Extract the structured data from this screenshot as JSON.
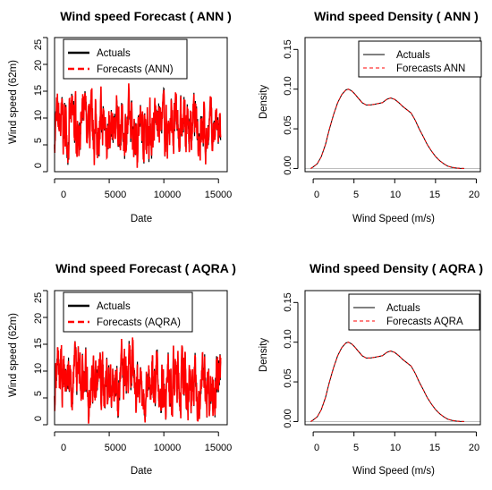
{
  "colors": {
    "actuals": "#000000",
    "forecast": "#ff0000",
    "axis": "#000000",
    "zero_line": "#bebebe"
  },
  "chart_data": [
    {
      "type": "line",
      "title": "Wind speed Forecast ( ANN )",
      "xlabel": "Date",
      "ylabel": "Wind speed (62m)",
      "xlim": [
        0,
        15800
      ],
      "ylim": [
        0,
        25
      ],
      "xticks": [
        "0",
        "5000",
        "10000",
        "15000"
      ],
      "yticks": [
        "0",
        "5",
        "10",
        "15",
        "20",
        "25"
      ],
      "legend_position": "top-right",
      "legend_box": true,
      "series": [
        {
          "name": "Actuals",
          "color": "#000000",
          "style": "solid"
        },
        {
          "name": "Forecasts (ANN)",
          "color": "#ff0000",
          "style": "dashed"
        }
      ],
      "band": [
        {
          "x": 0,
          "low": 1.2,
          "high": 14.8
        },
        {
          "x": 1500,
          "low": 0.4,
          "high": 17.0
        },
        {
          "x": 3000,
          "low": 0.9,
          "high": 15.2
        },
        {
          "x": 4500,
          "low": 0.6,
          "high": 16.2
        },
        {
          "x": 6000,
          "low": 0.5,
          "high": 16.6
        },
        {
          "x": 7500,
          "low": -0.4,
          "high": 16.0
        },
        {
          "x": 9000,
          "low": 0.8,
          "high": 16.8
        },
        {
          "x": 10500,
          "low": 0.6,
          "high": 16.2
        },
        {
          "x": 12000,
          "low": 0.5,
          "high": 16.0
        },
        {
          "x": 13500,
          "low": 0.7,
          "high": 14.6
        },
        {
          "x": 15200,
          "low": 0.8,
          "high": 14.0
        }
      ]
    },
    {
      "type": "line",
      "title": "Wind speed Density ( ANN )",
      "xlabel": "Wind Speed (m/s)",
      "ylabel": "Density",
      "xlim": [
        -1,
        20.5
      ],
      "ylim": [
        -0.004,
        0.165
      ],
      "xticks": [
        "0",
        "5",
        "10",
        "15",
        "20"
      ],
      "yticks": [
        "0.00",
        "0.05",
        "0.10",
        "0.15"
      ],
      "legend_position": "top-right",
      "legend_box": true,
      "series": [
        {
          "name": "Actuals",
          "color": "#000000",
          "style": "solid"
        },
        {
          "name": "Forecasts ANN",
          "color": "#ff0000",
          "style": "dashed"
        }
      ],
      "x": [
        -0.3,
        0,
        0.5,
        1,
        1.5,
        2,
        2.5,
        3,
        3.5,
        4,
        4.3,
        4.7,
        5,
        5.5,
        6,
        6.5,
        7,
        7.5,
        8,
        8.5,
        9,
        9.5,
        10,
        10.5,
        11,
        11.5,
        12,
        12.5,
        13,
        13.5,
        14,
        14.5,
        15,
        15.5,
        16,
        16.5,
        17,
        17.5,
        18,
        18.5
      ],
      "y": [
        0.0,
        0.002,
        0.006,
        0.015,
        0.03,
        0.05,
        0.068,
        0.083,
        0.093,
        0.099,
        0.1,
        0.098,
        0.095,
        0.089,
        0.083,
        0.08,
        0.08,
        0.081,
        0.082,
        0.083,
        0.087,
        0.089,
        0.087,
        0.083,
        0.078,
        0.074,
        0.07,
        0.061,
        0.05,
        0.04,
        0.03,
        0.022,
        0.015,
        0.01,
        0.006,
        0.003,
        0.0015,
        0.0006,
        0.0002,
        0.0
      ]
    },
    {
      "type": "line",
      "title": "Wind speed Forecast ( AQRA )",
      "xlabel": "Date",
      "ylabel": "Wind speed (62m)",
      "xlim": [
        0,
        15800
      ],
      "ylim": [
        0,
        25
      ],
      "xticks": [
        "0",
        "5000",
        "10000",
        "15000"
      ],
      "yticks": [
        "0",
        "5",
        "10",
        "15",
        "20",
        "25"
      ],
      "legend_position": "top-right",
      "legend_box": true,
      "series": [
        {
          "name": "Actuals",
          "color": "#000000",
          "style": "solid"
        },
        {
          "name": "Forecasts (AQRA)",
          "color": "#ff0000",
          "style": "dashed"
        }
      ],
      "band": [
        {
          "x": 0,
          "low": 1.0,
          "high": 14.5
        },
        {
          "x": 1500,
          "low": 0.5,
          "high": 17.2
        },
        {
          "x": 3000,
          "low": 0.8,
          "high": 15.0
        },
        {
          "x": 4500,
          "low": 0.6,
          "high": 16.0
        },
        {
          "x": 6000,
          "low": 0.5,
          "high": 16.8
        },
        {
          "x": 7500,
          "low": 0.3,
          "high": 15.8
        },
        {
          "x": 9000,
          "low": 0.7,
          "high": 16.5
        },
        {
          "x": 10500,
          "low": 0.6,
          "high": 16.2
        },
        {
          "x": 12000,
          "low": 0.5,
          "high": 15.6
        },
        {
          "x": 13500,
          "low": 0.7,
          "high": 14.4
        },
        {
          "x": 15200,
          "low": 0.8,
          "high": 14.0
        }
      ]
    },
    {
      "type": "line",
      "title": "Wind speed Density ( AQRA )",
      "xlabel": "Wind Speed (m/s)",
      "ylabel": "Density",
      "xlim": [
        -1,
        20.5
      ],
      "ylim": [
        -0.004,
        0.165
      ],
      "xticks": [
        "0",
        "5",
        "10",
        "15",
        "20"
      ],
      "yticks": [
        "0.00",
        "0.05",
        "0.10",
        "0.15"
      ],
      "legend_position": "top-right",
      "legend_box": true,
      "series": [
        {
          "name": "Actuals",
          "color": "#000000",
          "style": "solid"
        },
        {
          "name": "Forecasts AQRA",
          "color": "#ff0000",
          "style": "dashed"
        }
      ],
      "x": [
        -0.3,
        0,
        0.5,
        1,
        1.5,
        2,
        2.5,
        3,
        3.5,
        4,
        4.3,
        4.7,
        5,
        5.5,
        6,
        6.5,
        7,
        7.5,
        8,
        8.5,
        9,
        9.5,
        10,
        10.5,
        11,
        11.5,
        12,
        12.5,
        13,
        13.5,
        14,
        14.5,
        15,
        15.5,
        16,
        16.5,
        17,
        17.5,
        18,
        18.5
      ],
      "y": [
        0.0,
        0.002,
        0.006,
        0.015,
        0.03,
        0.05,
        0.068,
        0.083,
        0.093,
        0.099,
        0.1,
        0.098,
        0.095,
        0.089,
        0.083,
        0.08,
        0.08,
        0.081,
        0.082,
        0.083,
        0.087,
        0.089,
        0.087,
        0.083,
        0.078,
        0.074,
        0.07,
        0.061,
        0.05,
        0.04,
        0.03,
        0.022,
        0.015,
        0.01,
        0.006,
        0.003,
        0.0015,
        0.0006,
        0.0002,
        0.0
      ]
    }
  ]
}
